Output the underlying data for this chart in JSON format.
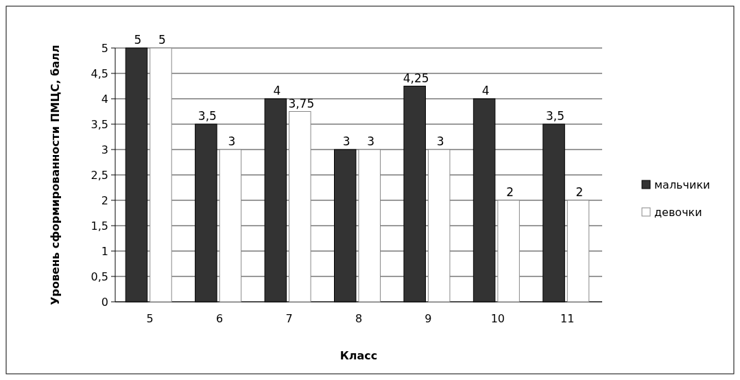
{
  "chart_data": {
    "type": "bar",
    "xlabel": "Класс",
    "ylabel": "Уровень сформированности ПМЦС, балл",
    "categories": [
      "5",
      "6",
      "7",
      "8",
      "9",
      "10",
      "11"
    ],
    "series": [
      {
        "name": "мальчики",
        "color": "#333333",
        "values": [
          5,
          3.5,
          4,
          3,
          4.25,
          4,
          3.5
        ],
        "value_labels": [
          "5",
          "3,5",
          "4",
          "3",
          "4,25",
          "4",
          "3,5"
        ]
      },
      {
        "name": "девочки",
        "color": "#ffffff",
        "values": [
          5,
          3,
          3.75,
          3,
          3,
          2,
          2
        ],
        "value_labels": [
          "5",
          "3",
          "3,75",
          "3",
          "3",
          "2",
          "2"
        ]
      }
    ],
    "ylim": [
      0,
      5
    ],
    "yticks": [
      0,
      {
        "value": 0.5,
        "label": "0,5"
      },
      1,
      {
        "value": 1.5,
        "label": "1,5"
      },
      2,
      {
        "value": 2.5,
        "label": "2,5"
      },
      3,
      {
        "value": 3.5,
        "label": "3,5"
      },
      4,
      {
        "value": 4.5,
        "label": "4,5"
      },
      5
    ],
    "grid": "y",
    "legend": "right"
  }
}
